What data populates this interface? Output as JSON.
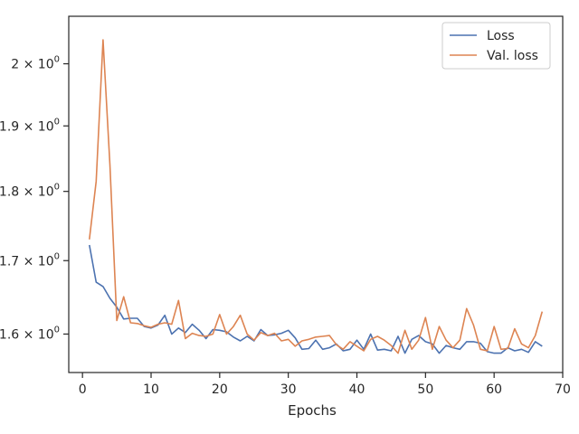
{
  "chart_data": {
    "type": "line",
    "title": "",
    "xlabel": "Epochs",
    "ylabel": "",
    "yscale": "log",
    "xlim": [
      -2,
      70
    ],
    "ylim": [
      1.55,
      2.08
    ],
    "grid": false,
    "legend_placement": "top-right",
    "x_ticks": [
      {
        "value": 0,
        "label": "0"
      },
      {
        "value": 10,
        "label": "10"
      },
      {
        "value": 20,
        "label": "20"
      },
      {
        "value": 30,
        "label": "30"
      },
      {
        "value": 40,
        "label": "40"
      },
      {
        "value": 50,
        "label": "50"
      },
      {
        "value": 60,
        "label": "60"
      },
      {
        "value": 70,
        "label": "70"
      }
    ],
    "y_ticks": [
      {
        "value": 1.6,
        "base": "1.6",
        "exp": "0"
      },
      {
        "value": 1.7,
        "base": "1.7",
        "exp": "0"
      },
      {
        "value": 1.8,
        "base": "1.8",
        "exp": "0"
      },
      {
        "value": 1.9,
        "base": "1.9",
        "exp": "0"
      },
      {
        "value": 2.0,
        "base": "2",
        "exp": "0"
      }
    ],
    "x": [
      1,
      2,
      3,
      4,
      5,
      6,
      7,
      8,
      9,
      10,
      11,
      12,
      13,
      14,
      15,
      16,
      17,
      18,
      19,
      20,
      21,
      22,
      23,
      24,
      25,
      26,
      27,
      28,
      29,
      30,
      31,
      32,
      33,
      34,
      35,
      36,
      37,
      38,
      39,
      40,
      41,
      42,
      43,
      44,
      45,
      46,
      47,
      48,
      49,
      50,
      51,
      52,
      53,
      54,
      55,
      56,
      57,
      58,
      59,
      60,
      61,
      62,
      63,
      64,
      65,
      66,
      67
    ],
    "series": [
      {
        "name": "Loss",
        "color": "#4c72b0",
        "values": [
          1.722,
          1.67,
          1.664,
          1.648,
          1.636,
          1.62,
          1.621,
          1.621,
          1.61,
          1.608,
          1.612,
          1.625,
          1.6,
          1.608,
          1.602,
          1.613,
          1.605,
          1.594,
          1.606,
          1.605,
          1.603,
          1.596,
          1.591,
          1.597,
          1.591,
          1.606,
          1.598,
          1.599,
          1.601,
          1.605,
          1.595,
          1.58,
          1.581,
          1.592,
          1.58,
          1.582,
          1.587,
          1.578,
          1.58,
          1.592,
          1.58,
          1.6,
          1.579,
          1.58,
          1.578,
          1.597,
          1.575,
          1.593,
          1.598,
          1.59,
          1.587,
          1.575,
          1.585,
          1.582,
          1.58,
          1.59,
          1.59,
          1.588,
          1.577,
          1.575,
          1.575,
          1.582,
          1.578,
          1.58,
          1.576,
          1.59,
          1.584
        ]
      },
      {
        "name": "Val. loss",
        "color": "#dd8452",
        "values": [
          1.73,
          1.815,
          2.04,
          1.84,
          1.618,
          1.65,
          1.615,
          1.614,
          1.611,
          1.609,
          1.613,
          1.615,
          1.613,
          1.645,
          1.594,
          1.601,
          1.598,
          1.597,
          1.6,
          1.626,
          1.6,
          1.61,
          1.625,
          1.6,
          1.592,
          1.602,
          1.598,
          1.601,
          1.591,
          1.593,
          1.584,
          1.591,
          1.593,
          1.596,
          1.597,
          1.598,
          1.586,
          1.58,
          1.59,
          1.584,
          1.578,
          1.593,
          1.597,
          1.592,
          1.585,
          1.575,
          1.605,
          1.58,
          1.592,
          1.622,
          1.58,
          1.61,
          1.592,
          1.582,
          1.592,
          1.634,
          1.612,
          1.58,
          1.578,
          1.61,
          1.58,
          1.581,
          1.607,
          1.587,
          1.582,
          1.598,
          1.63
        ]
      }
    ]
  }
}
